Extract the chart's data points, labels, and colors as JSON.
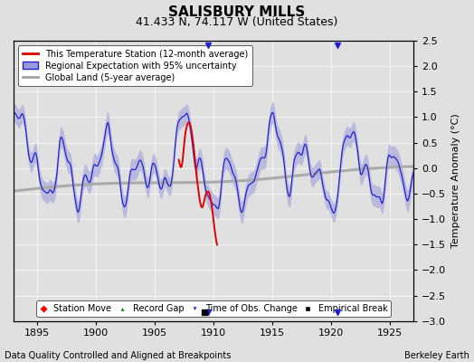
{
  "title": "SALISBURY MILLS",
  "subtitle": "41.433 N, 74.117 W (United States)",
  "ylabel": "Temperature Anomaly (°C)",
  "footer_left": "Data Quality Controlled and Aligned at Breakpoints",
  "footer_right": "Berkeley Earth",
  "xlim": [
    1893,
    1927
  ],
  "ylim": [
    -3.0,
    2.5
  ],
  "xticks": [
    1895,
    1900,
    1905,
    1910,
    1915,
    1920,
    1925
  ],
  "yticks": [
    -3,
    -2.5,
    -2,
    -1.5,
    -1,
    -0.5,
    0,
    0.5,
    1,
    1.5,
    2,
    2.5
  ],
  "bg_color": "#e0e0e0",
  "plot_bg_color": "#e0e0e0",
  "regional_color": "#2222cc",
  "regional_fill_color": "#9999dd",
  "station_color": "#dd0000",
  "global_color": "#aaaaaa",
  "time_change_x1": 1909.5,
  "time_change_x2": 1920.5,
  "empirical_break_x": 1909.2,
  "seed": 7
}
